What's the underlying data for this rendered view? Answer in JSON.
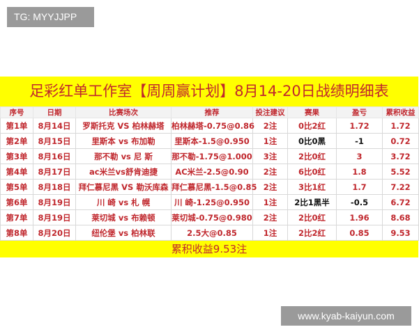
{
  "watermark_top": "TG: MYYJJPP",
  "watermark_bottom": "www.kyab-kaiyun.com",
  "title": "足彩红单工作室【周周赢计划】8月14-20日战绩明细表",
  "headers": [
    "序号",
    "日期",
    "比赛场次",
    "推荐",
    "投注建议",
    "赛果",
    "盈亏",
    "累积收益"
  ],
  "rows": [
    [
      "第1单",
      "8月14日",
      "罗斯托克 VS 柏林赫塔",
      "柏林赫塔-0.75@0.86",
      "2注",
      "0比2红",
      "1.72",
      "1.72"
    ],
    [
      "第2单",
      "8月15日",
      "里斯本 vs 布加勒",
      "里斯本-1.5@0.950",
      "1注",
      "0比0黑",
      "-1",
      "0.72"
    ],
    [
      "第3单",
      "8月16日",
      "那不勒 vs 尼 斯",
      "那不勒-1.75@1.000",
      "3注",
      "2比0红",
      "3",
      "3.72"
    ],
    [
      "第4单",
      "8月17日",
      "ac米兰vs舒肯迪捷",
      "AC米兰-2.5@0.90",
      "2注",
      "6比0红",
      "1.8",
      "5.52"
    ],
    [
      "第5单",
      "8月18日",
      "拜仁慕尼黑 VS 勒沃库森",
      "拜仁慕尼黑-1.5@0.85",
      "2注",
      "3比1红",
      "1.7",
      "7.22"
    ],
    [
      "第6单",
      "8月19日",
      "川 崎 vs 札 幌",
      "川 崎-1.25@0.950",
      "1注",
      "2比1黑半",
      "-0.5",
      "6.72"
    ],
    [
      "第7单",
      "8月19日",
      "莱切城 vs 布赖顿",
      "莱切城-0.75@0.980",
      "2注",
      "2比0红",
      "1.96",
      "8.68"
    ],
    [
      "第8单",
      "8月20日",
      "纽伦堡 vs 柏林联",
      "2.5大@0.85",
      "1注",
      "2比2红",
      "0.85",
      "9.53"
    ]
  ],
  "loss_rows": [
    1,
    5
  ],
  "footer": "累积收益9.53注",
  "colors": {
    "accent": "#c0272d",
    "highlight": "#ffff00",
    "loss": "#111111"
  }
}
